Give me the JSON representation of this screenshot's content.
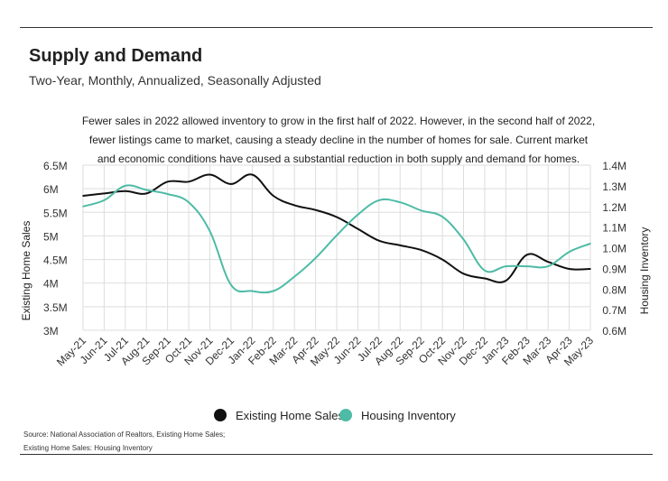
{
  "header": {
    "title": "Supply and Demand",
    "subtitle": "Two-Year, Monthly, Annualized, Seasonally Adjusted"
  },
  "description": "Fewer sales in 2022 allowed inventory to grow in the first half of 2022. However, in the second half of 2022, fewer listings came to market, causing a steady decline in the number of homes for sale. Current market and economic conditions have caused a substantial reduction in both supply and demand for homes.",
  "source": {
    "line1": "Source:  National Association of Realtors, Existing Home Sales;",
    "line2": "Existing Home Sales: Housing Inventory"
  },
  "colors": {
    "sales": "#111111",
    "inventory": "#4dbba6",
    "grid": "#dddddd"
  },
  "chart_data": {
    "type": "line",
    "title": "Supply and Demand",
    "categories": [
      "May-21",
      "Jun-21",
      "Jul-21",
      "Aug-21",
      "Sep-21",
      "Oct-21",
      "Nov-21",
      "Dec-21",
      "Jan-22",
      "Feb-22",
      "Mar-22",
      "Apr-22",
      "May-22",
      "Jun-22",
      "Jul-22",
      "Aug-22",
      "Sep-22",
      "Oct-22",
      "Nov-22",
      "Dec-22",
      "Jan-23",
      "Feb-23",
      "Mar-23",
      "Apr-23",
      "May-23"
    ],
    "xlabel": "",
    "ylabel_left": "Existing Home Sales",
    "ylabel_right": "Housing Inventory",
    "ylim_left": [
      3000000,
      6500000
    ],
    "ylim_right": [
      600000,
      1400000
    ],
    "yticks_left": [
      "3M",
      "3.5M",
      "4M",
      "4.5M",
      "5M",
      "5.5M",
      "6M",
      "6.5M"
    ],
    "yticks_right": [
      "0.6M",
      "0.7M",
      "0.8M",
      "0.9M",
      "1.0M",
      "1.1M",
      "1.2M",
      "1.3M",
      "1.4M"
    ],
    "grid": true,
    "legend": "bottom-center",
    "series": [
      {
        "name": "Existing Home Sales",
        "axis": "left",
        "values": [
          5850000,
          5900000,
          5950000,
          5900000,
          6150000,
          6150000,
          6300000,
          6100000,
          6300000,
          5850000,
          5650000,
          5550000,
          5400000,
          5150000,
          4900000,
          4800000,
          4700000,
          4500000,
          4200000,
          4100000,
          4050000,
          4600000,
          4450000,
          4300000,
          4300000
        ]
      },
      {
        "name": "Housing Inventory",
        "axis": "left-secondary",
        "values": [
          1200000,
          1230000,
          1300000,
          1280000,
          1260000,
          1220000,
          1080000,
          820000,
          790000,
          790000,
          860000,
          950000,
          1060000,
          1160000,
          1230000,
          1220000,
          1180000,
          1150000,
          1040000,
          890000,
          910000,
          910000,
          910000,
          980000,
          1020000
        ]
      }
    ]
  }
}
